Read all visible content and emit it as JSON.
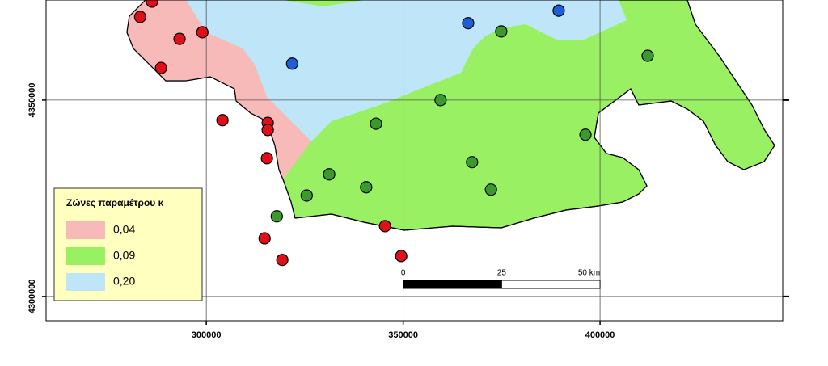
{
  "map": {
    "xlim": [
      259300,
      446400
    ],
    "ylim": [
      4293800,
      4375500
    ],
    "xticks": [
      300000,
      350000,
      400000
    ],
    "yticks": [
      4300000,
      4350000
    ],
    "grid": true,
    "legend": {
      "title": "Ζώνες παραμέτρου κ",
      "items": [
        {
          "label": "0,04",
          "color": "#f8b9b9",
          "marker_color": "#e01018"
        },
        {
          "label": "0,09",
          "color": "#98f062",
          "marker_color": "#3a9a2c"
        },
        {
          "label": "0,20",
          "color": "#bee6f8",
          "marker_color": "#1c5fd8"
        }
      ]
    },
    "scale_bar": {
      "ticks": [
        0,
        25,
        {
          "value": 50,
          "label": "50 km"
        }
      ],
      "unit_m": 1000
    },
    "stations": [
      {
        "x": 286200,
        "y": 4375100,
        "zone": 0
      },
      {
        "x": 283200,
        "y": 4371200,
        "zone": 0
      },
      {
        "x": 293200,
        "y": 4365600,
        "zone": 0
      },
      {
        "x": 299000,
        "y": 4367300,
        "zone": 0
      },
      {
        "x": 288500,
        "y": 4358200,
        "zone": 0
      },
      {
        "x": 304100,
        "y": 4344900,
        "zone": 0
      },
      {
        "x": 315600,
        "y": 4344200,
        "zone": 0
      },
      {
        "x": 315600,
        "y": 4342400,
        "zone": 0
      },
      {
        "x": 315400,
        "y": 4335200,
        "zone": 0
      },
      {
        "x": 314800,
        "y": 4314800,
        "zone": 0
      },
      {
        "x": 319300,
        "y": 4309300,
        "zone": 0
      },
      {
        "x": 345400,
        "y": 4317900,
        "zone": 0
      },
      {
        "x": 349500,
        "y": 4310300,
        "zone": 0
      },
      {
        "x": 317900,
        "y": 4320400,
        "zone": 1
      },
      {
        "x": 325500,
        "y": 4325700,
        "zone": 1
      },
      {
        "x": 331200,
        "y": 4331100,
        "zone": 1
      },
      {
        "x": 340600,
        "y": 4327800,
        "zone": 1
      },
      {
        "x": 343100,
        "y": 4344000,
        "zone": 1
      },
      {
        "x": 359500,
        "y": 4350000,
        "zone": 1
      },
      {
        "x": 367500,
        "y": 4334200,
        "zone": 1
      },
      {
        "x": 372300,
        "y": 4327200,
        "zone": 1
      },
      {
        "x": 374900,
        "y": 4367500,
        "zone": 1
      },
      {
        "x": 396300,
        "y": 4341200,
        "zone": 1
      },
      {
        "x": 412100,
        "y": 4361300,
        "zone": 1
      },
      {
        "x": 321800,
        "y": 4359300,
        "zone": 2
      },
      {
        "x": 366500,
        "y": 4369600,
        "zone": 2
      },
      {
        "x": 389500,
        "y": 4372800,
        "zone": 2
      }
    ]
  }
}
